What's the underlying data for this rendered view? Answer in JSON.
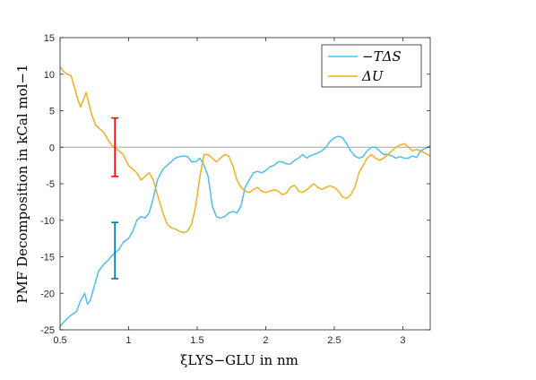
{
  "chart_data": {
    "type": "line",
    "xlabel": "ξLYS−GLU in nm",
    "ylabel": "PMF Decomposition in kCal mol−1",
    "xlim": [
      0.5,
      3.2
    ],
    "ylim": [
      -25,
      15
    ],
    "xticks": [
      "0.5",
      "1",
      "1.5",
      "2",
      "2.5",
      "3"
    ],
    "yticks": [
      "15",
      "10",
      "5",
      "0",
      "-5",
      "-10",
      "-15",
      "-20",
      "-25"
    ],
    "xtick_values": [
      0.5,
      1,
      1.5,
      2,
      2.5,
      3
    ],
    "ytick_values": [
      15,
      10,
      5,
      0,
      -5,
      -10,
      -15,
      -20,
      -25
    ],
    "zero_line_color": "#a6a6a6",
    "grid": false,
    "legend_position": "top-right",
    "series": [
      {
        "name": "−TΔS",
        "color": "#4dbeee",
        "x": [
          0.5,
          0.55,
          0.58,
          0.62,
          0.65,
          0.68,
          0.7,
          0.72,
          0.75,
          0.78,
          0.82,
          0.85,
          0.88,
          0.9,
          0.93,
          0.96,
          1.0,
          1.03,
          1.06,
          1.09,
          1.12,
          1.15,
          1.18,
          1.21,
          1.25,
          1.28,
          1.31,
          1.34,
          1.37,
          1.4,
          1.43,
          1.46,
          1.49,
          1.52,
          1.55,
          1.58,
          1.61,
          1.64,
          1.67,
          1.7,
          1.73,
          1.76,
          1.79,
          1.82,
          1.85,
          1.88,
          1.91,
          1.94,
          1.97,
          2.0,
          2.03,
          2.06,
          2.09,
          2.12,
          2.15,
          2.18,
          2.21,
          2.24,
          2.27,
          2.3,
          2.32,
          2.35,
          2.38,
          2.41,
          2.44,
          2.47,
          2.5,
          2.53,
          2.56,
          2.59,
          2.62,
          2.65,
          2.68,
          2.71,
          2.74,
          2.77,
          2.8,
          2.83,
          2.86,
          2.89,
          2.92,
          2.95,
          2.98,
          3.01,
          3.04,
          3.07,
          3.1,
          3.13,
          3.16,
          3.2
        ],
        "y": [
          -24.5,
          -23.5,
          -23.0,
          -22.5,
          -21.0,
          -20.0,
          -21.5,
          -21.0,
          -19.0,
          -17.0,
          -16.0,
          -15.5,
          -14.8,
          -14.5,
          -14.0,
          -13.0,
          -12.5,
          -11.5,
          -10.0,
          -9.5,
          -9.7,
          -9.0,
          -7.0,
          -4.5,
          -3.0,
          -2.5,
          -2.0,
          -1.5,
          -1.3,
          -1.2,
          -1.3,
          -2.0,
          -2.0,
          -1.5,
          -2.5,
          -4.0,
          -8.0,
          -9.5,
          -9.7,
          -9.5,
          -9.0,
          -8.8,
          -9.0,
          -8.0,
          -5.5,
          -4.5,
          -3.5,
          -3.3,
          -3.5,
          -3.2,
          -2.7,
          -2.5,
          -2.0,
          -2.0,
          -2.3,
          -2.3,
          -1.8,
          -1.5,
          -1.0,
          -1.5,
          -1.2,
          -1.0,
          -0.8,
          -0.5,
          0.0,
          0.8,
          1.3,
          1.5,
          1.3,
          0.5,
          -0.5,
          -1.2,
          -1.5,
          -1.3,
          -0.5,
          0.0,
          0.0,
          -0.5,
          -1.0,
          -1.0,
          -1.2,
          -1.5,
          -1.3,
          -1.5,
          -1.5,
          -1.2,
          -1.4,
          -0.5,
          -0.2,
          0.2
        ]
      },
      {
        "name": "ΔU",
        "color": "#edb120",
        "x": [
          0.5,
          0.52,
          0.55,
          0.58,
          0.6,
          0.63,
          0.65,
          0.67,
          0.69,
          0.71,
          0.73,
          0.76,
          0.79,
          0.82,
          0.85,
          0.88,
          0.9,
          0.93,
          0.96,
          1.0,
          1.03,
          1.06,
          1.09,
          1.12,
          1.15,
          1.18,
          1.21,
          1.25,
          1.28,
          1.31,
          1.34,
          1.37,
          1.4,
          1.43,
          1.46,
          1.49,
          1.52,
          1.55,
          1.58,
          1.61,
          1.64,
          1.67,
          1.7,
          1.73,
          1.76,
          1.79,
          1.82,
          1.85,
          1.88,
          1.91,
          1.94,
          1.97,
          2.0,
          2.03,
          2.06,
          2.09,
          2.12,
          2.15,
          2.18,
          2.21,
          2.24,
          2.27,
          2.3,
          2.32,
          2.35,
          2.38,
          2.41,
          2.44,
          2.47,
          2.5,
          2.53,
          2.56,
          2.59,
          2.62,
          2.65,
          2.68,
          2.71,
          2.74,
          2.77,
          2.8,
          2.83,
          2.86,
          2.89,
          2.92,
          2.95,
          2.98,
          3.01,
          3.04,
          3.07,
          3.1,
          3.13,
          3.16,
          3.2
        ],
        "y": [
          11.0,
          10.5,
          10.0,
          9.8,
          8.5,
          6.5,
          5.5,
          6.5,
          7.5,
          6.0,
          4.5,
          3.0,
          2.5,
          2.0,
          1.0,
          0.2,
          0.0,
          -0.5,
          -1.0,
          -2.5,
          -3.0,
          -3.5,
          -4.5,
          -4.0,
          -3.5,
          -4.5,
          -6.5,
          -9.0,
          -10.5,
          -11.0,
          -11.2,
          -11.5,
          -11.7,
          -11.5,
          -10.5,
          -8.0,
          -4.0,
          -1.0,
          -1.0,
          -1.5,
          -2.0,
          -1.5,
          -1.0,
          -1.2,
          -2.5,
          -4.5,
          -5.5,
          -6.0,
          -6.2,
          -5.8,
          -5.5,
          -6.0,
          -6.2,
          -6.0,
          -5.8,
          -6.0,
          -6.5,
          -6.3,
          -5.5,
          -5.2,
          -6.0,
          -6.2,
          -5.8,
          -5.5,
          -5.0,
          -5.5,
          -5.8,
          -5.5,
          -5.3,
          -5.5,
          -6.0,
          -6.8,
          -7.0,
          -6.5,
          -5.5,
          -3.5,
          -2.5,
          -1.5,
          -1.0,
          -1.5,
          -1.8,
          -1.5,
          -1.0,
          -0.5,
          0.0,
          0.3,
          0.5,
          0.0,
          -0.5,
          -0.3,
          -0.5,
          -0.8,
          -1.2
        ]
      }
    ],
    "errorbars": [
      {
        "x": 0.9,
        "center": 0.0,
        "low": -4.0,
        "high": 4.0,
        "color": "#ff0000"
      },
      {
        "x": 0.9,
        "center": -14.0,
        "low": -18.0,
        "high": -10.3,
        "color": "#0072bd"
      }
    ]
  }
}
